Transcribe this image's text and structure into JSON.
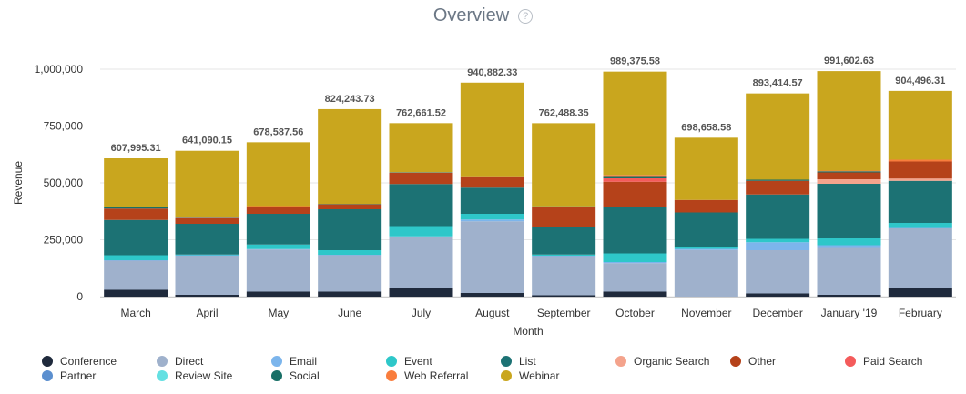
{
  "title": "Overview",
  "help_icon": "?",
  "help_icon_name": "help-circle-icon",
  "chart_data": {
    "type": "bar",
    "stacked": true,
    "xlabel": "Month",
    "ylabel": "Revenue",
    "ylim": [
      0,
      1000000
    ],
    "yticks": [
      0,
      250000,
      500000,
      750000,
      1000000
    ],
    "ytick_labels": [
      "0",
      "250,000",
      "500,000",
      "750,000",
      "1,000,000"
    ],
    "grid": true,
    "legend_position": "bottom",
    "categories": [
      "March",
      "April",
      "May",
      "June",
      "July",
      "August",
      "September",
      "October",
      "November",
      "December",
      "January '19",
      "February"
    ],
    "totals": [
      607995.31,
      641090.15,
      678587.56,
      824243.73,
      762661.52,
      940882.33,
      762488.35,
      989375.58,
      698658.58,
      893414.57,
      991602.63,
      904496.31
    ],
    "total_labels": [
      "607,995.31",
      "641,090.15",
      "678,587.56",
      "824,243.73",
      "762,661.52",
      "940,882.33",
      "762,488.35",
      "989,375.58",
      "698,658.58",
      "893,414.57",
      "991,602.63",
      "904,496.31"
    ],
    "series": [
      {
        "name": "Conference",
        "color": "#1f2a3c",
        "values": [
          30000,
          8000,
          22000,
          22000,
          38000,
          16000,
          6000,
          22000,
          0,
          14000,
          8000,
          38000
        ]
      },
      {
        "name": "Direct",
        "color": "#9fb1cc",
        "values": [
          128000,
          172000,
          185000,
          160000,
          225000,
          315000,
          172000,
          125000,
          205000,
          190000,
          210000,
          262000
        ]
      },
      {
        "name": "Email",
        "color": "#7cb5ec",
        "values": [
          2000,
          2000,
          2000,
          2000,
          2000,
          8000,
          2000,
          5000,
          5000,
          35000,
          8000,
          2000
        ]
      },
      {
        "name": "Event",
        "color": "#2ec7c9",
        "values": [
          22000,
          3000,
          20000,
          20000,
          45000,
          25000,
          5000,
          38000,
          10000,
          15000,
          30000,
          22000
        ]
      },
      {
        "name": "List",
        "color": "#1c7274",
        "values": [
          155000,
          135000,
          135000,
          180000,
          185000,
          115000,
          120000,
          205000,
          150000,
          195000,
          240000,
          185000
        ]
      },
      {
        "name": "Organic Search",
        "color": "#f4a38c",
        "values": [
          0,
          0,
          0,
          0,
          0,
          0,
          0,
          0,
          0,
          0,
          20000,
          10000
        ]
      },
      {
        "name": "Other",
        "color": "#b5421a",
        "values": [
          50000,
          25000,
          30000,
          20000,
          50000,
          50000,
          90000,
          110000,
          55000,
          60000,
          30000,
          75000
        ]
      },
      {
        "name": "Paid Search",
        "color": "#f45b5b",
        "values": [
          0,
          0,
          0,
          0,
          0,
          0,
          0,
          15000,
          0,
          0,
          0,
          0
        ]
      },
      {
        "name": "Partner",
        "color": "#5b8fcf",
        "values": [
          0,
          0,
          0,
          0,
          0,
          0,
          0,
          0,
          0,
          0,
          0,
          0
        ]
      },
      {
        "name": "Review Site",
        "color": "#64e0e2",
        "values": [
          0,
          0,
          0,
          0,
          0,
          0,
          0,
          0,
          0,
          0,
          0,
          0
        ]
      },
      {
        "name": "Social",
        "color": "#186f66",
        "values": [
          5000,
          2000,
          2000,
          2000,
          2000,
          0,
          2000,
          10000,
          0,
          5000,
          5000,
          0
        ]
      },
      {
        "name": "Web Referral",
        "color": "#f97d3d",
        "values": [
          3000,
          2000,
          2000,
          2000,
          0,
          0,
          0,
          5000,
          0,
          0,
          3000,
          8000
        ]
      },
      {
        "name": "Webinar",
        "color": "#c9a61e",
        "values": [
          212995.31,
          292090.15,
          280587.56,
          416243.73,
          215661.52,
          411882.33,
          365488.35,
          454375.58,
          273658.58,
          379414.57,
          437602.63,
          302496.31
        ]
      }
    ]
  }
}
